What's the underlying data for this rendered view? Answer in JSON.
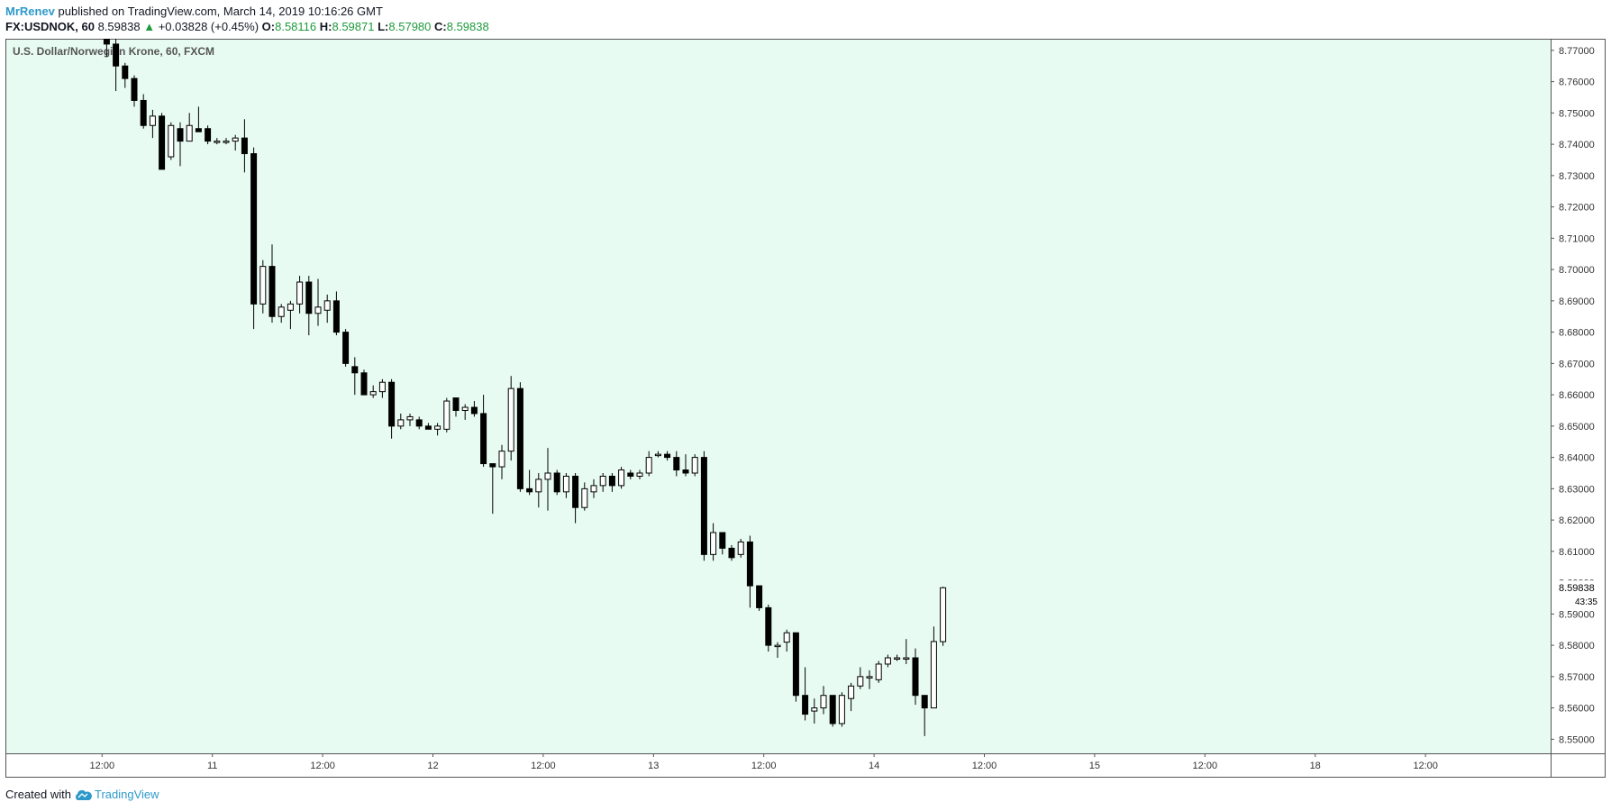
{
  "header": {
    "author": "MrRenev",
    "published_text": "published on TradingView.com, March 14, 2019 10:16:26 GMT",
    "symbol": "FX:USDNOK, 60",
    "last": "8.59838",
    "change_arrow": "▲",
    "change": "+0.03828 (+0.45%)",
    "open_label": "O:",
    "open": "8.58116",
    "high_label": "H:",
    "high": "8.59871",
    "low_label": "L:",
    "low": "8.57980",
    "close_label": "C:",
    "close": "8.59838"
  },
  "footer": {
    "created_with": "Created with",
    "brand": "TradingView"
  },
  "colors": {
    "background": "#e8fbf3",
    "up_body": "#ffffff",
    "down_body": "#000000",
    "wick": "#000000",
    "up_text": "#1e9a3b",
    "brand": "#2e99c9"
  },
  "chart_data": {
    "type": "candlestick",
    "title": "U.S. Dollar/Norwegian Krone, 60, FXCM",
    "ylim": [
      8.5455,
      8.7737
    ],
    "y_ticks": [
      "8.77000",
      "8.76000",
      "8.75000",
      "8.74000",
      "8.73000",
      "8.72000",
      "8.71000",
      "8.70000",
      "8.69000",
      "8.68000",
      "8.67000",
      "8.66000",
      "8.65000",
      "8.64000",
      "8.63000",
      "8.62000",
      "8.61000",
      "8.60000",
      "8.59000",
      "8.58000",
      "8.57000",
      "8.56000",
      "8.55000"
    ],
    "x_ticks": [
      {
        "label": "12:00",
        "bar": -0.5
      },
      {
        "label": "11",
        "bar": 11.5
      },
      {
        "label": "12:00",
        "bar": 23.5
      },
      {
        "label": "12",
        "bar": 35.5
      },
      {
        "label": "12:00",
        "bar": 47.5
      },
      {
        "label": "13",
        "bar": 59.5
      },
      {
        "label": "12:00",
        "bar": 71.5
      },
      {
        "label": "14",
        "bar": 83.5
      },
      {
        "label": "12:00",
        "bar": 95.5
      },
      {
        "label": "15",
        "bar": 107.5
      },
      {
        "label": "12:00",
        "bar": 119.5
      },
      {
        "label": "18",
        "bar": 131.5
      },
      {
        "label": "12:00",
        "bar": 143.5
      }
    ],
    "last_price": "8.59838",
    "countdown": "43:35",
    "candles": [
      {
        "o": 8.774,
        "h": 8.776,
        "l": 8.768,
        "c": 8.772
      },
      {
        "o": 8.772,
        "h": 8.774,
        "l": 8.757,
        "c": 8.765
      },
      {
        "o": 8.765,
        "h": 8.766,
        "l": 8.758,
        "c": 8.761
      },
      {
        "o": 8.761,
        "h": 8.762,
        "l": 8.752,
        "c": 8.754
      },
      {
        "o": 8.754,
        "h": 8.756,
        "l": 8.745,
        "c": 8.746
      },
      {
        "o": 8.746,
        "h": 8.751,
        "l": 8.742,
        "c": 8.749
      },
      {
        "o": 8.749,
        "h": 8.75,
        "l": 8.732,
        "c": 8.732
      },
      {
        "o": 8.736,
        "h": 8.747,
        "l": 8.735,
        "c": 8.746
      },
      {
        "o": 8.745,
        "h": 8.747,
        "l": 8.733,
        "c": 8.741
      },
      {
        "o": 8.741,
        "h": 8.75,
        "l": 8.741,
        "c": 8.746
      },
      {
        "o": 8.745,
        "h": 8.752,
        "l": 8.744,
        "c": 8.744
      },
      {
        "o": 8.745,
        "h": 8.746,
        "l": 8.74,
        "c": 8.741
      },
      {
        "o": 8.741,
        "h": 8.742,
        "l": 8.74,
        "c": 8.741
      },
      {
        "o": 8.741,
        "h": 8.742,
        "l": 8.74,
        "c": 8.741
      },
      {
        "o": 8.741,
        "h": 8.743,
        "l": 8.738,
        "c": 8.742
      },
      {
        "o": 8.742,
        "h": 8.748,
        "l": 8.731,
        "c": 8.737
      },
      {
        "o": 8.737,
        "h": 8.739,
        "l": 8.681,
        "c": 8.689
      },
      {
        "o": 8.689,
        "h": 8.703,
        "l": 8.686,
        "c": 8.701
      },
      {
        "o": 8.701,
        "h": 8.708,
        "l": 8.683,
        "c": 8.685
      },
      {
        "o": 8.685,
        "h": 8.689,
        "l": 8.683,
        "c": 8.688
      },
      {
        "o": 8.687,
        "h": 8.69,
        "l": 8.681,
        "c": 8.689
      },
      {
        "o": 8.689,
        "h": 8.698,
        "l": 8.686,
        "c": 8.696
      },
      {
        "o": 8.696,
        "h": 8.698,
        "l": 8.679,
        "c": 8.686
      },
      {
        "o": 8.686,
        "h": 8.697,
        "l": 8.682,
        "c": 8.688
      },
      {
        "o": 8.687,
        "h": 8.692,
        "l": 8.683,
        "c": 8.69
      },
      {
        "o": 8.69,
        "h": 8.693,
        "l": 8.679,
        "c": 8.68
      },
      {
        "o": 8.68,
        "h": 8.681,
        "l": 8.669,
        "c": 8.67
      },
      {
        "o": 8.669,
        "h": 8.672,
        "l": 8.66,
        "c": 8.667
      },
      {
        "o": 8.667,
        "h": 8.668,
        "l": 8.66,
        "c": 8.66
      },
      {
        "o": 8.66,
        "h": 8.663,
        "l": 8.659,
        "c": 8.661
      },
      {
        "o": 8.661,
        "h": 8.665,
        "l": 8.659,
        "c": 8.664
      },
      {
        "o": 8.664,
        "h": 8.665,
        "l": 8.646,
        "c": 8.65
      },
      {
        "o": 8.65,
        "h": 8.654,
        "l": 8.649,
        "c": 8.652
      },
      {
        "o": 8.652,
        "h": 8.654,
        "l": 8.65,
        "c": 8.653
      },
      {
        "o": 8.652,
        "h": 8.653,
        "l": 8.649,
        "c": 8.65
      },
      {
        "o": 8.65,
        "h": 8.651,
        "l": 8.649,
        "c": 8.649
      },
      {
        "o": 8.649,
        "h": 8.651,
        "l": 8.647,
        "c": 8.65
      },
      {
        "o": 8.649,
        "h": 8.659,
        "l": 8.648,
        "c": 8.658
      },
      {
        "o": 8.659,
        "h": 8.659,
        "l": 8.653,
        "c": 8.655
      },
      {
        "o": 8.655,
        "h": 8.657,
        "l": 8.652,
        "c": 8.656
      },
      {
        "o": 8.656,
        "h": 8.658,
        "l": 8.653,
        "c": 8.654
      },
      {
        "o": 8.654,
        "h": 8.66,
        "l": 8.637,
        "c": 8.638
      },
      {
        "o": 8.638,
        "h": 8.638,
        "l": 8.622,
        "c": 8.637
      },
      {
        "o": 8.637,
        "h": 8.644,
        "l": 8.633,
        "c": 8.642
      },
      {
        "o": 8.642,
        "h": 8.666,
        "l": 8.639,
        "c": 8.662
      },
      {
        "o": 8.662,
        "h": 8.664,
        "l": 8.629,
        "c": 8.63
      },
      {
        "o": 8.63,
        "h": 8.636,
        "l": 8.628,
        "c": 8.629
      },
      {
        "o": 8.629,
        "h": 8.635,
        "l": 8.624,
        "c": 8.633
      },
      {
        "o": 8.633,
        "h": 8.643,
        "l": 8.623,
        "c": 8.635
      },
      {
        "o": 8.635,
        "h": 8.636,
        "l": 8.628,
        "c": 8.629
      },
      {
        "o": 8.629,
        "h": 8.635,
        "l": 8.627,
        "c": 8.634
      },
      {
        "o": 8.634,
        "h": 8.635,
        "l": 8.619,
        "c": 8.624
      },
      {
        "o": 8.624,
        "h": 8.632,
        "l": 8.623,
        "c": 8.63
      },
      {
        "o": 8.629,
        "h": 8.633,
        "l": 8.627,
        "c": 8.631
      },
      {
        "o": 8.631,
        "h": 8.635,
        "l": 8.629,
        "c": 8.634
      },
      {
        "o": 8.634,
        "h": 8.635,
        "l": 8.629,
        "c": 8.631
      },
      {
        "o": 8.631,
        "h": 8.637,
        "l": 8.63,
        "c": 8.636
      },
      {
        "o": 8.635,
        "h": 8.636,
        "l": 8.633,
        "c": 8.634
      },
      {
        "o": 8.634,
        "h": 8.636,
        "l": 8.633,
        "c": 8.635
      },
      {
        "o": 8.635,
        "h": 8.642,
        "l": 8.634,
        "c": 8.64
      },
      {
        "o": 8.641,
        "h": 8.642,
        "l": 8.64,
        "c": 8.641
      },
      {
        "o": 8.641,
        "h": 8.642,
        "l": 8.639,
        "c": 8.64
      },
      {
        "o": 8.64,
        "h": 8.642,
        "l": 8.634,
        "c": 8.636
      },
      {
        "o": 8.636,
        "h": 8.641,
        "l": 8.634,
        "c": 8.635
      },
      {
        "o": 8.635,
        "h": 8.641,
        "l": 8.634,
        "c": 8.64
      },
      {
        "o": 8.64,
        "h": 8.642,
        "l": 8.607,
        "c": 8.609
      },
      {
        "o": 8.609,
        "h": 8.619,
        "l": 8.607,
        "c": 8.616
      },
      {
        "o": 8.616,
        "h": 8.616,
        "l": 8.609,
        "c": 8.611
      },
      {
        "o": 8.611,
        "h": 8.612,
        "l": 8.607,
        "c": 8.608
      },
      {
        "o": 8.609,
        "h": 8.614,
        "l": 8.608,
        "c": 8.613
      },
      {
        "o": 8.613,
        "h": 8.615,
        "l": 8.592,
        "c": 8.599
      },
      {
        "o": 8.599,
        "h": 8.599,
        "l": 8.591,
        "c": 8.592
      },
      {
        "o": 8.592,
        "h": 8.593,
        "l": 8.578,
        "c": 8.58
      },
      {
        "o": 8.58,
        "h": 8.581,
        "l": 8.576,
        "c": 8.58
      },
      {
        "o": 8.581,
        "h": 8.585,
        "l": 8.578,
        "c": 8.584
      },
      {
        "o": 8.584,
        "h": 8.584,
        "l": 8.562,
        "c": 8.564
      },
      {
        "o": 8.564,
        "h": 8.573,
        "l": 8.556,
        "c": 8.558
      },
      {
        "o": 8.559,
        "h": 8.563,
        "l": 8.555,
        "c": 8.56
      },
      {
        "o": 8.56,
        "h": 8.567,
        "l": 8.558,
        "c": 8.564
      },
      {
        "o": 8.564,
        "h": 8.564,
        "l": 8.554,
        "c": 8.555
      },
      {
        "o": 8.555,
        "h": 8.565,
        "l": 8.554,
        "c": 8.564
      },
      {
        "o": 8.563,
        "h": 8.568,
        "l": 8.559,
        "c": 8.567
      },
      {
        "o": 8.567,
        "h": 8.573,
        "l": 8.566,
        "c": 8.57
      },
      {
        "o": 8.57,
        "h": 8.572,
        "l": 8.566,
        "c": 8.57
      },
      {
        "o": 8.569,
        "h": 8.575,
        "l": 8.568,
        "c": 8.574
      },
      {
        "o": 8.574,
        "h": 8.577,
        "l": 8.573,
        "c": 8.576
      },
      {
        "o": 8.576,
        "h": 8.577,
        "l": 8.575,
        "c": 8.576
      },
      {
        "o": 8.576,
        "h": 8.582,
        "l": 8.574,
        "c": 8.576
      },
      {
        "o": 8.576,
        "h": 8.579,
        "l": 8.561,
        "c": 8.564
      },
      {
        "o": 8.564,
        "h": 8.564,
        "l": 8.551,
        "c": 8.56
      },
      {
        "o": 8.56,
        "h": 8.586,
        "l": 8.56,
        "c": 8.5812
      },
      {
        "o": 8.58116,
        "h": 8.59871,
        "l": 8.5798,
        "c": 8.59838
      }
    ]
  }
}
